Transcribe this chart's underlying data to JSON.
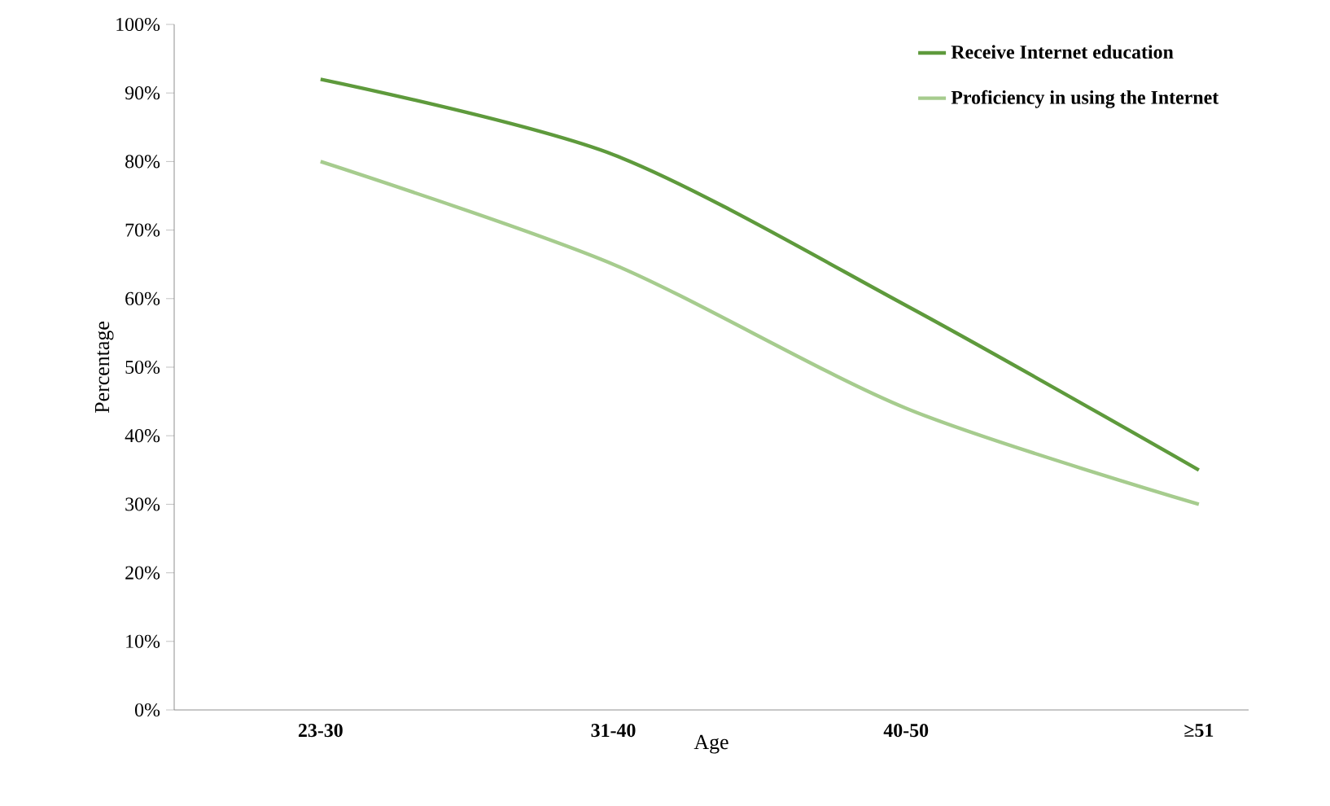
{
  "chart_data": {
    "type": "line",
    "xlabel": "Age",
    "ylabel": "Percentage",
    "categories": [
      "23-30",
      "31-40",
      "40-50",
      "≥51"
    ],
    "series": [
      {
        "name": "Receive Internet education",
        "color": "#5e9a3c",
        "values": [
          92,
          81,
          59,
          35
        ]
      },
      {
        "name": "Proficiency in using the Internet",
        "color": "#a6cc8e",
        "values": [
          80,
          65,
          44,
          30
        ]
      }
    ],
    "ylim": [
      0,
      100
    ],
    "yticks": [
      {
        "value": 0,
        "label": "0%"
      },
      {
        "value": 10,
        "label": "10%"
      },
      {
        "value": 20,
        "label": "20%"
      },
      {
        "value": 30,
        "label": "30%"
      },
      {
        "value": 40,
        "label": "40%"
      },
      {
        "value": 50,
        "label": "50%"
      },
      {
        "value": 60,
        "label": "60%"
      },
      {
        "value": 70,
        "label": "70%"
      },
      {
        "value": 80,
        "label": "80%"
      },
      {
        "value": 90,
        "label": "90%"
      },
      {
        "value": 100,
        "label": "100%"
      }
    ],
    "legend": "top right",
    "line_style": "solid"
  }
}
